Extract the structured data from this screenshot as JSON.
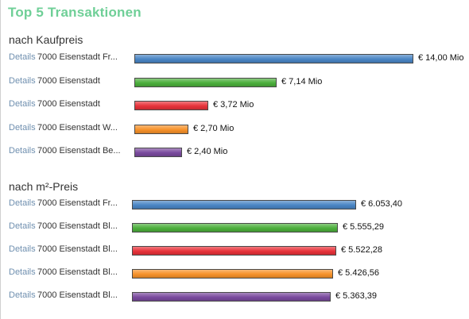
{
  "title": "Top 5 Transaktionen",
  "colors": [
    "#4a86c5",
    "#4caf3c",
    "#e8323a",
    "#f7922a",
    "#7a4a9e"
  ],
  "chart_data": [
    {
      "type": "bar",
      "title": "nach Kaufpreis",
      "link_label": "Details",
      "categories": [
        "7000 Eisenstadt Fr...",
        "7000 Eisenstadt",
        "7000 Eisenstadt",
        "7000 Eisenstadt W...",
        "7000 Eisenstadt Be..."
      ],
      "values": [
        14.0,
        7.14,
        3.72,
        2.7,
        2.4
      ],
      "value_labels": [
        "€ 14,00 Mio",
        "€ 7,14 Mio",
        "€ 3,72 Mio",
        "€ 2,70 Mio",
        "€ 2,40 Mio"
      ],
      "xlim": [
        0,
        14.0
      ]
    },
    {
      "type": "bar",
      "title": "nach m²-Preis",
      "link_label": "Details",
      "categories": [
        "7000 Eisenstadt Fr...",
        "7000 Eisenstadt Bl...",
        "7000 Eisenstadt Bl...",
        "7000 Eisenstadt Bl...",
        "7000 Eisenstadt Bl..."
      ],
      "values": [
        6053.4,
        5555.29,
        5522.28,
        5426.56,
        5363.39
      ],
      "value_labels": [
        "€ 6.053,40",
        "€ 5.555,29",
        "€ 5.522,28",
        "€ 5.426,56",
        "€ 5.363,39"
      ],
      "xlim": [
        0,
        6053.4
      ]
    }
  ]
}
